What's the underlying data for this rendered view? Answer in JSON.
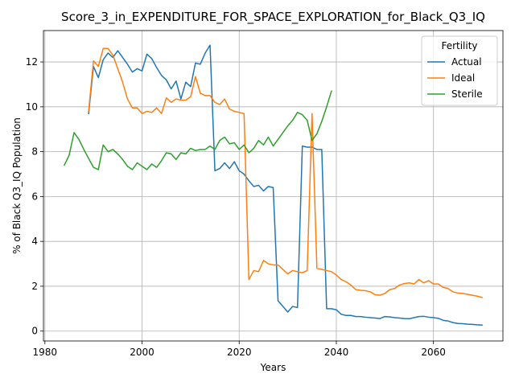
{
  "chart_data": {
    "type": "line",
    "title": "Score_3_in_EXPENDITURE_FOR_SPACE_EXPLORATION_for_Black_Q3_IQ",
    "xlabel": "Years",
    "ylabel": "% of Black Q3_IQ Population",
    "xlim": [
      1979.7,
      2074.3
    ],
    "ylim": [
      -0.44,
      13.4
    ],
    "xticks": [
      1980,
      2000,
      2020,
      2040,
      2060
    ],
    "yticks": [
      0,
      2,
      4,
      6,
      8,
      10,
      12
    ],
    "grid": true,
    "legend": {
      "title": "Fertility",
      "placement": "top-right"
    },
    "series": [
      {
        "name": "Actual",
        "color": "#1f77b4",
        "x": [
          1989,
          1990,
          1991,
          1992,
          1993,
          1994,
          1995,
          1996,
          1997,
          1998,
          1999,
          2000,
          2001,
          2002,
          2003,
          2004,
          2005,
          2006,
          2007,
          2008,
          2009,
          2010,
          2011,
          2012,
          2013,
          2014,
          2015,
          2016,
          2017,
          2018,
          2019,
          2020,
          2021,
          2022,
          2023,
          2024,
          2025,
          2026,
          2027,
          2028,
          2029,
          2030,
          2031,
          2032,
          2033,
          2034,
          2035,
          2036,
          2037,
          2038,
          2039,
          2040,
          2041,
          2042,
          2043,
          2044,
          2045,
          2046,
          2047,
          2048,
          2049,
          2050,
          2051,
          2052,
          2053,
          2054,
          2055,
          2056,
          2057,
          2058,
          2059,
          2060,
          2061,
          2062,
          2063,
          2064,
          2065,
          2066,
          2067,
          2068,
          2069,
          2070
        ],
        "values": [
          9.7,
          11.8,
          11.3,
          12.1,
          12.4,
          12.2,
          12.5,
          12.2,
          11.9,
          11.55,
          11.7,
          11.6,
          12.35,
          12.15,
          11.75,
          11.4,
          11.2,
          10.8,
          11.15,
          10.35,
          11.1,
          10.9,
          11.95,
          11.9,
          12.4,
          12.75,
          7.15,
          7.25,
          7.5,
          7.25,
          7.55,
          7.15,
          7.0,
          6.7,
          6.45,
          6.5,
          6.25,
          6.45,
          6.4,
          1.35,
          1.1,
          0.85,
          1.1,
          1.05,
          8.25,
          8.2,
          8.2,
          8.1,
          8.1,
          1.0,
          1.0,
          0.95,
          0.75,
          0.7,
          0.7,
          0.65,
          0.65,
          0.62,
          0.6,
          0.58,
          0.56,
          0.65,
          0.63,
          0.6,
          0.58,
          0.56,
          0.55,
          0.6,
          0.65,
          0.66,
          0.62,
          0.6,
          0.57,
          0.48,
          0.45,
          0.38,
          0.34,
          0.33,
          0.31,
          0.3,
          0.28,
          0.27
        ]
      },
      {
        "name": "Ideal",
        "color": "#ff7f0e",
        "x": [
          1989,
          1990,
          1991,
          1992,
          1993,
          1994,
          1995,
          1996,
          1997,
          1998,
          1999,
          2000,
          2001,
          2002,
          2003,
          2004,
          2005,
          2006,
          2007,
          2008,
          2009,
          2010,
          2011,
          2012,
          2013,
          2014,
          2015,
          2016,
          2017,
          2018,
          2019,
          2020,
          2021,
          2022,
          2023,
          2024,
          2025,
          2026,
          2027,
          2028,
          2029,
          2030,
          2031,
          2032,
          2033,
          2034,
          2035,
          2036,
          2037,
          2038,
          2039,
          2040,
          2041,
          2042,
          2043,
          2044,
          2045,
          2046,
          2047,
          2048,
          2049,
          2050,
          2051,
          2052,
          2053,
          2054,
          2055,
          2056,
          2057,
          2058,
          2059,
          2060,
          2061,
          2062,
          2063,
          2064,
          2065,
          2066,
          2067,
          2068,
          2069,
          2070
        ],
        "values": [
          9.8,
          12.05,
          11.8,
          12.6,
          12.6,
          12.3,
          11.7,
          11.1,
          10.35,
          9.95,
          9.95,
          9.7,
          9.8,
          9.75,
          9.95,
          9.7,
          10.4,
          10.2,
          10.35,
          10.3,
          10.3,
          10.45,
          11.35,
          10.6,
          10.5,
          10.5,
          10.2,
          10.1,
          10.35,
          9.9,
          9.8,
          9.75,
          9.7,
          2.3,
          2.7,
          2.65,
          3.15,
          3.0,
          2.95,
          2.95,
          2.75,
          2.55,
          2.7,
          2.65,
          2.6,
          2.7,
          9.7,
          2.8,
          2.75,
          2.7,
          2.65,
          2.5,
          2.3,
          2.2,
          2.05,
          1.85,
          1.82,
          1.8,
          1.75,
          1.62,
          1.6,
          1.68,
          1.85,
          1.9,
          2.05,
          2.12,
          2.15,
          2.1,
          2.3,
          2.15,
          2.25,
          2.1,
          2.1,
          1.95,
          1.9,
          1.75,
          1.7,
          1.68,
          1.64,
          1.6,
          1.56,
          1.5
        ]
      },
      {
        "name": "Sterile",
        "color": "#2ca02c",
        "x": [
          1984,
          1985,
          1986,
          1987,
          1988,
          1989,
          1990,
          1991,
          1992,
          1993,
          1994,
          1995,
          1996,
          1997,
          1998,
          1999,
          2000,
          2001,
          2002,
          2003,
          2004,
          2005,
          2006,
          2007,
          2008,
          2009,
          2010,
          2011,
          2012,
          2013,
          2014,
          2015,
          2016,
          2017,
          2018,
          2019,
          2020,
          2021,
          2022,
          2023,
          2024,
          2025,
          2026,
          2027,
          2028,
          2029,
          2030,
          2031,
          2032,
          2033,
          2034,
          2035,
          2036,
          2037,
          2038,
          2039
        ],
        "values": [
          7.4,
          7.85,
          8.85,
          8.55,
          8.1,
          7.7,
          7.3,
          7.2,
          8.3,
          8.0,
          8.1,
          7.9,
          7.65,
          7.35,
          7.2,
          7.5,
          7.35,
          7.2,
          7.45,
          7.3,
          7.6,
          7.95,
          7.9,
          7.65,
          7.95,
          7.9,
          8.15,
          8.05,
          8.1,
          8.1,
          8.25,
          8.1,
          8.5,
          8.65,
          8.35,
          8.4,
          8.1,
          8.3,
          7.95,
          8.15,
          8.5,
          8.3,
          8.65,
          8.25,
          8.55,
          8.85,
          9.15,
          9.4,
          9.75,
          9.65,
          9.4,
          8.5,
          8.8,
          9.35,
          10.0,
          10.7
        ]
      }
    ]
  }
}
